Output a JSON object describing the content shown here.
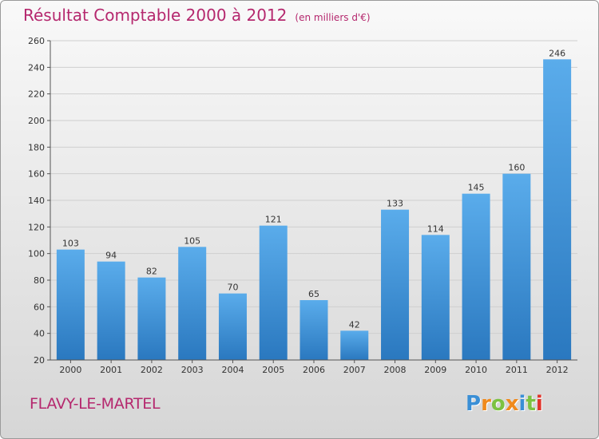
{
  "header": {
    "title": "Résultat Comptable 2000 à 2012",
    "unit_note": "(en milliers d'€)"
  },
  "footer": {
    "place": "FLAVY-LE-MARTEL",
    "logo": {
      "letters": [
        "P",
        "r",
        "o",
        "x",
        "i",
        "t",
        "i"
      ],
      "colors": [
        "#3a8fd6",
        "#f08a1c",
        "#7cc242",
        "#f08a1c",
        "#3a8fd6",
        "#7cc242",
        "#e0342b"
      ]
    }
  },
  "colors": {
    "title": "#b5286e",
    "bar_top": "#5aaceb",
    "bar_bottom": "#2a78bf",
    "grid": "#cfcfcf"
  },
  "chart_data": {
    "type": "bar",
    "title": "Résultat Comptable 2000 à 2012",
    "subtitle": "(en milliers d'€)",
    "categories": [
      "2000",
      "2001",
      "2002",
      "2003",
      "2004",
      "2005",
      "2006",
      "2007",
      "2008",
      "2009",
      "2010",
      "2011",
      "2012"
    ],
    "values": [
      103,
      94,
      82,
      105,
      70,
      121,
      65,
      42,
      133,
      114,
      145,
      160,
      246
    ],
    "data_labels": [
      "103",
      "94",
      "82",
      "105",
      "70",
      "121",
      "65",
      "42",
      "133",
      "114",
      "145",
      "160",
      "246"
    ],
    "ylim": [
      20,
      260
    ],
    "yticks": [
      20,
      40,
      60,
      80,
      100,
      120,
      140,
      160,
      180,
      200,
      220,
      240,
      260
    ],
    "grid": true,
    "xlabel": "",
    "ylabel": ""
  }
}
